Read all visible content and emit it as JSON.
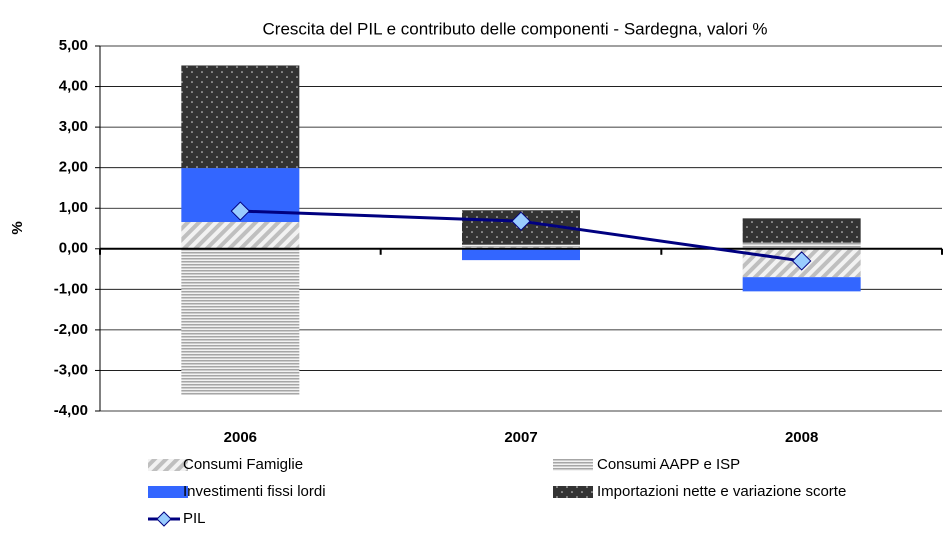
{
  "chart_data": {
    "type": "stacked-bar-line",
    "title": "Crescita del PIL e contributo delle componenti - Sardegna, valori %",
    "ylabel": "%",
    "categories": [
      "2006",
      "2007",
      "2008"
    ],
    "series": [
      {
        "name": "Consumi Famiglie",
        "color": "#bfbfbf",
        "values": [
          0.66,
          0.05,
          -0.7
        ]
      },
      {
        "name": "Consumi AAPP e ISP",
        "color": "#a6a6a6",
        "values": [
          -3.6,
          0.05,
          0.15
        ]
      },
      {
        "name": "Investimenti fissi lordi",
        "color": "#3366ff",
        "values": [
          1.33,
          -0.28,
          -0.35
        ]
      },
      {
        "name": "Importazioni nette e variazione scorte",
        "color": "#333333",
        "values": [
          2.53,
          0.85,
          0.6
        ]
      },
      {
        "name": "PIL",
        "color": "#000080",
        "marker_color": "#99ccff",
        "kind": "line",
        "values": [
          0.93,
          0.68,
          -0.3
        ]
      }
    ],
    "ylim": [
      -4,
      5
    ],
    "yticks": [
      {
        "value": -4,
        "label": "-4,00"
      },
      {
        "value": -3,
        "label": "-3,00"
      },
      {
        "value": -2,
        "label": "-2,00"
      },
      {
        "value": -1,
        "label": "-1,00"
      },
      {
        "value": 0,
        "label": "0,00"
      },
      {
        "value": 1,
        "label": "1,00"
      },
      {
        "value": 2,
        "label": "2,00"
      },
      {
        "value": 3,
        "label": "3,00"
      },
      {
        "value": 4,
        "label": "4,00"
      },
      {
        "value": 5,
        "label": "5,00"
      }
    ],
    "grid": true,
    "legend": "bottom"
  }
}
